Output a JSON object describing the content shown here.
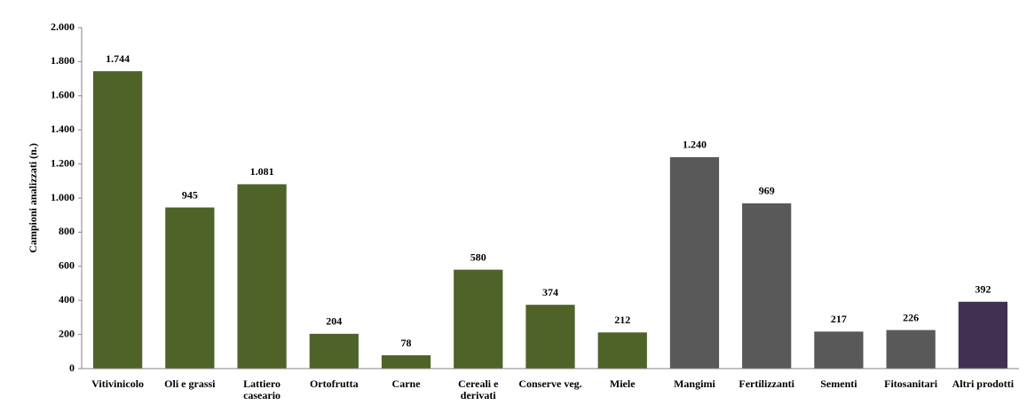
{
  "chart_data": {
    "type": "bar",
    "y_label": "Campioni analizzati (n.)",
    "categories": [
      "Vitivinicolo",
      "Oli e grassi",
      "Lattiero caseario",
      "Ortofrutta",
      "Carne",
      "Cereali e derivati",
      "Conserve veg.",
      "Miele",
      "Mangimi",
      "Fertilizzanti",
      "Sementi",
      "Fitosanitari",
      "Altri prodotti"
    ],
    "values": [
      1744,
      945,
      1081,
      204,
      78,
      580,
      374,
      212,
      1240,
      969,
      217,
      226,
      392
    ],
    "value_labels": [
      "1.744",
      "945",
      "1.081",
      "204",
      "78",
      "580",
      "374",
      "212",
      "1.240",
      "969",
      "217",
      "226",
      "392"
    ],
    "colors": [
      "#4f6228",
      "#4f6228",
      "#4f6228",
      "#4f6228",
      "#4f6228",
      "#4f6228",
      "#4f6228",
      "#4f6228",
      "#595959",
      "#595959",
      "#595959",
      "#595959",
      "#403152"
    ],
    "ylim": [
      0,
      2000
    ],
    "yticks": [
      0,
      200,
      400,
      600,
      800,
      {
        "value": 1000,
        "label": "1.000"
      },
      {
        "value": 1200,
        "label": "1.200"
      },
      {
        "value": 1400,
        "label": "1.400"
      },
      {
        "value": 1600,
        "label": "1.600"
      },
      {
        "value": 1800,
        "label": "1.800"
      },
      {
        "value": 2000,
        "label": "2.000"
      }
    ]
  }
}
